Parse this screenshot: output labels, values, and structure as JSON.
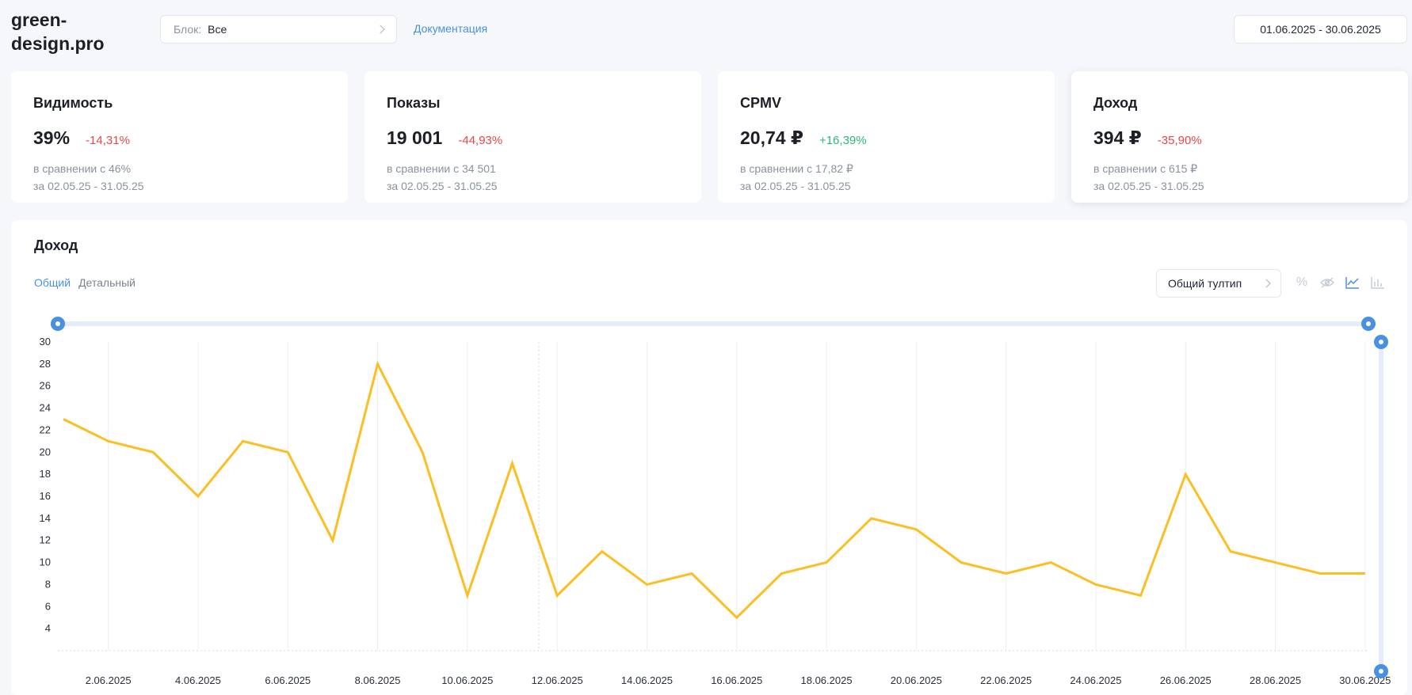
{
  "header": {
    "logo": "green-\ndesign.pro",
    "block_label": "Блок:",
    "block_value": "Все",
    "doc_link": "Документация",
    "date_range": "01.06.2025 - 30.06.2025"
  },
  "cards": [
    {
      "title": "Видимость",
      "value": "39%",
      "delta": "-14,31%",
      "compare": "в сравнении с 46%",
      "period": "за 02.05.25 - 31.05.25"
    },
    {
      "title": "Показы",
      "value": "19 001",
      "delta": "-44,93%",
      "compare": "в сравнении с 34 501",
      "period": "за 02.05.25 - 31.05.25"
    },
    {
      "title": "CPMV",
      "value": "20,74 ₽",
      "delta": "+16,39%",
      "compare": "в сравнении с 17,82 ₽",
      "period": "за 02.05.25 - 31.05.25"
    },
    {
      "title": "Доход",
      "value": "394 ₽",
      "delta": "-35,90%",
      "compare": "в сравнении с 615 ₽",
      "period": "за 02.05.25 - 31.05.25"
    }
  ],
  "colors": {
    "accent": "#4a90e2",
    "negative": "#e5484d",
    "positive": "#2fb67c",
    "series": "#fbbf24"
  },
  "chart_section": {
    "title": "Доход",
    "tabs": [
      "Общий",
      "Детальный"
    ],
    "tooltip_select": "Общий тултип",
    "tool_icons": [
      "percent-icon",
      "eye-off-icon",
      "line-chart-icon",
      "bar-chart-icon"
    ]
  },
  "chart_data": {
    "type": "line",
    "x": [
      "1.06.2025",
      "2.06.2025",
      "3.06.2025",
      "4.06.2025",
      "5.06.2025",
      "6.06.2025",
      "7.06.2025",
      "8.06.2025",
      "9.06.2025",
      "10.06.2025",
      "11.06.2025",
      "12.06.2025",
      "13.06.2025",
      "14.06.2025",
      "15.06.2025",
      "16.06.2025",
      "17.06.2025",
      "18.06.2025",
      "19.06.2025",
      "20.06.2025",
      "21.06.2025",
      "22.06.2025",
      "23.06.2025",
      "24.06.2025",
      "25.06.2025",
      "26.06.2025",
      "27.06.2025",
      "28.06.2025",
      "29.06.2025",
      "30.06.2025"
    ],
    "values": [
      23,
      21,
      20,
      16,
      21,
      20,
      12,
      28,
      20,
      7,
      19,
      7,
      11,
      8,
      9,
      5,
      9,
      10,
      14,
      13,
      10,
      9,
      10,
      8,
      7,
      18,
      11,
      10,
      9,
      9
    ],
    "x_tick_labels": [
      "2.06.2025",
      "4.06.2025",
      "6.06.2025",
      "8.06.2025",
      "10.06.2025",
      "12.06.2025",
      "14.06.2025",
      "16.06.2025",
      "18.06.2025",
      "20.06.2025",
      "22.06.2025",
      "24.06.2025",
      "26.06.2025",
      "28.06.2025",
      "30.06.2025"
    ],
    "y_ticks": [
      4,
      6,
      8,
      10,
      12,
      14,
      16,
      18,
      20,
      22,
      24,
      26,
      28,
      30
    ],
    "ylim": [
      2,
      30
    ],
    "grid": "vertical",
    "title": "",
    "xlabel": "",
    "ylabel": ""
  }
}
